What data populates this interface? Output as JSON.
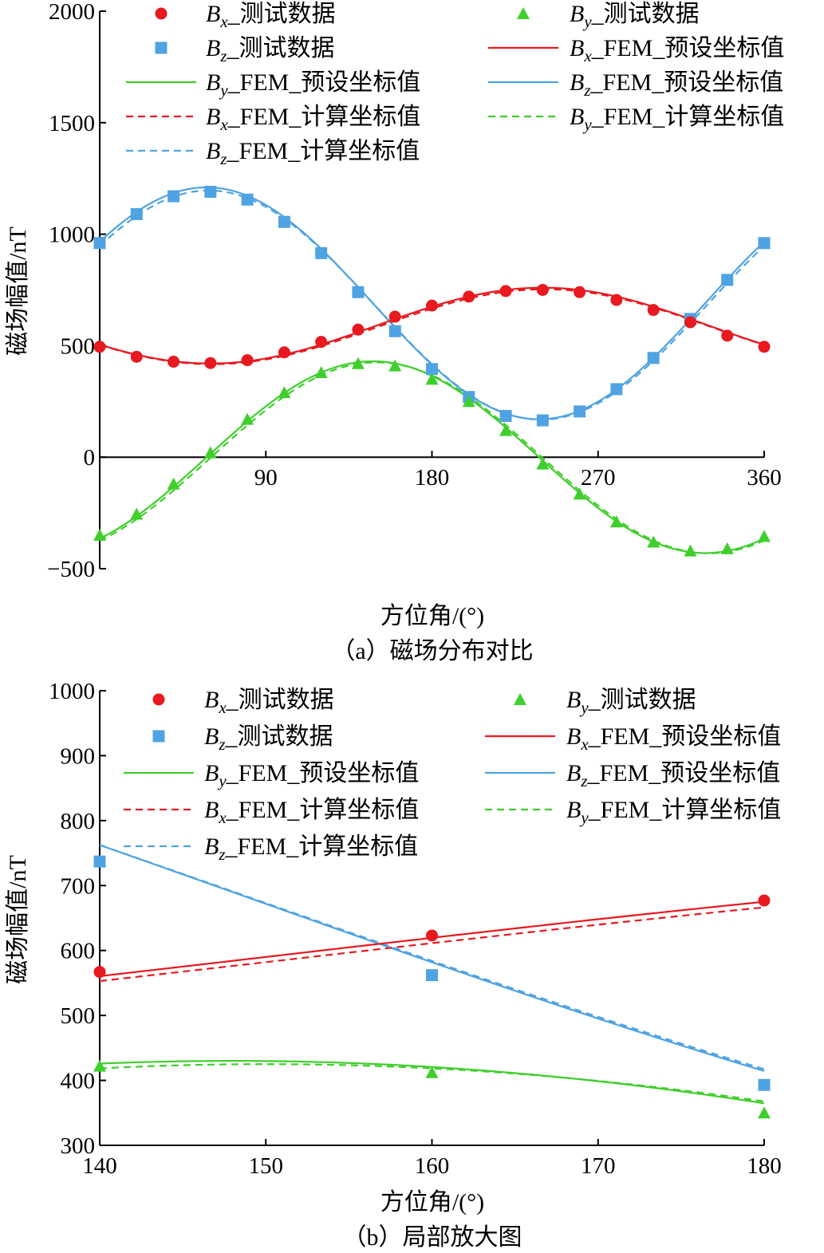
{
  "colors": {
    "bx": "#e8191f",
    "by": "#3fcf2c",
    "bz": "#4fa3e2",
    "axis": "#000000"
  },
  "legend": [
    {
      "key": "bx_test",
      "var": "B",
      "sub": "x",
      "text": "_测试数据",
      "marker": "circle",
      "color": "bx"
    },
    {
      "key": "by_test",
      "var": "B",
      "sub": "y",
      "text": "_测试数据",
      "marker": "triangle",
      "color": "by"
    },
    {
      "key": "bz_test",
      "var": "B",
      "sub": "z",
      "text": "_测试数据",
      "marker": "square",
      "color": "bz"
    },
    {
      "key": "bx_fem_preset",
      "var": "B",
      "sub": "x",
      "text": "_FEM_预设坐标值",
      "marker": "solid",
      "color": "bx"
    },
    {
      "key": "by_fem_preset",
      "var": "B",
      "sub": "y",
      "text": "_FEM_预设坐标值",
      "marker": "solid",
      "color": "by"
    },
    {
      "key": "bz_fem_preset",
      "var": "B",
      "sub": "z",
      "text": "_FEM_预设坐标值",
      "marker": "solid",
      "color": "bz"
    },
    {
      "key": "bx_fem_calc",
      "var": "B",
      "sub": "x",
      "text": "_FEM_计算坐标值",
      "marker": "dashed",
      "color": "bx"
    },
    {
      "key": "by_fem_calc",
      "var": "B",
      "sub": "y",
      "text": "_FEM_计算坐标值",
      "marker": "dashed",
      "color": "by"
    },
    {
      "key": "bz_fem_calc",
      "var": "B",
      "sub": "z",
      "text": "_FEM_计算坐标值",
      "marker": "dashed",
      "color": "bz"
    }
  ],
  "chart_data": [
    {
      "type": "line",
      "caption": "（a）磁场分布对比",
      "xlabel": "方位角/(°)",
      "ylabel": "磁场幅值/nT",
      "xlim": [
        0,
        360
      ],
      "ylim": [
        -500,
        2000
      ],
      "xticks": [
        "90",
        "180",
        "270",
        "360"
      ],
      "yticks": [
        "−500",
        "0",
        "500",
        "1000",
        "1500",
        "2000"
      ],
      "xtick_values": [
        90,
        180,
        270,
        360
      ],
      "ytick_values": [
        -500,
        0,
        500,
        1000,
        1500,
        2000
      ],
      "grid": false,
      "legend_position": "top",
      "markers": {
        "x": [
          0,
          20,
          40,
          60,
          80,
          100,
          120,
          140,
          160,
          180,
          200,
          220,
          240,
          260,
          280,
          300,
          320,
          340,
          360
        ],
        "bx_test": [
          495,
          450,
          428,
          422,
          435,
          470,
          517,
          572,
          630,
          680,
          720,
          745,
          750,
          740,
          705,
          660,
          605,
          545,
          495
        ],
        "by_test": [
          -350,
          -255,
          -120,
          20,
          170,
          290,
          380,
          420,
          410,
          350,
          250,
          120,
          -30,
          -165,
          -290,
          -380,
          -420,
          -410,
          -355
        ],
        "bz_test": [
          960,
          1090,
          1170,
          1190,
          1155,
          1055,
          915,
          740,
          565,
          395,
          270,
          185,
          165,
          205,
          305,
          445,
          620,
          795,
          960
        ]
      },
      "curves": {
        "bx_fem_preset": {
          "offset": 590,
          "amp": 170,
          "peak_deg": 240
        },
        "bx_fem_calc": {
          "offset": 585,
          "amp": 168,
          "peak_deg": 241
        },
        "by_fem_preset": {
          "offset": 0,
          "amp": 430,
          "peak_deg": 148
        },
        "by_fem_calc": {
          "offset": -3,
          "amp": 428,
          "peak_deg": 150
        },
        "bz_fem_preset": {
          "offset": 690,
          "amp": 520,
          "peak_deg": 58
        },
        "bz_fem_calc": {
          "offset": 682,
          "amp": 514,
          "peak_deg": 59
        }
      }
    },
    {
      "type": "line",
      "caption": "（b）局部放大图",
      "xlabel": "方位角/(°)",
      "ylabel": "磁场幅值/nT",
      "xlim": [
        140,
        180
      ],
      "ylim": [
        300,
        1000
      ],
      "xticks": [
        "140",
        "150",
        "160",
        "170",
        "180"
      ],
      "yticks": [
        "300",
        "400",
        "500",
        "600",
        "700",
        "800",
        "900",
        "1000"
      ],
      "xtick_values": [
        140,
        150,
        160,
        170,
        180
      ],
      "ytick_values": [
        300,
        400,
        500,
        600,
        700,
        800,
        900,
        1000
      ],
      "grid": false,
      "legend_position": "top",
      "markers": {
        "x": [
          140,
          160,
          180
        ],
        "bx_test": [
          567,
          623,
          677
        ],
        "by_test": [
          422,
          412,
          350
        ],
        "bz_test": [
          737,
          562,
          393
        ]
      },
      "curves": {
        "bx_fem_preset": {
          "offset": 590,
          "amp": 170,
          "peak_deg": 240
        },
        "bx_fem_calc": {
          "offset": 585,
          "amp": 168,
          "peak_deg": 241
        },
        "by_fem_preset": {
          "offset": 0,
          "amp": 430,
          "peak_deg": 148
        },
        "by_fem_calc": {
          "offset": -3,
          "amp": 428,
          "peak_deg": 150
        },
        "bz_fem_preset": {
          "offset": 690,
          "amp": 520,
          "peak_deg": 58
        },
        "bz_fem_calc": {
          "offset": 682,
          "amp": 514,
          "peak_deg": 59
        }
      }
    }
  ]
}
